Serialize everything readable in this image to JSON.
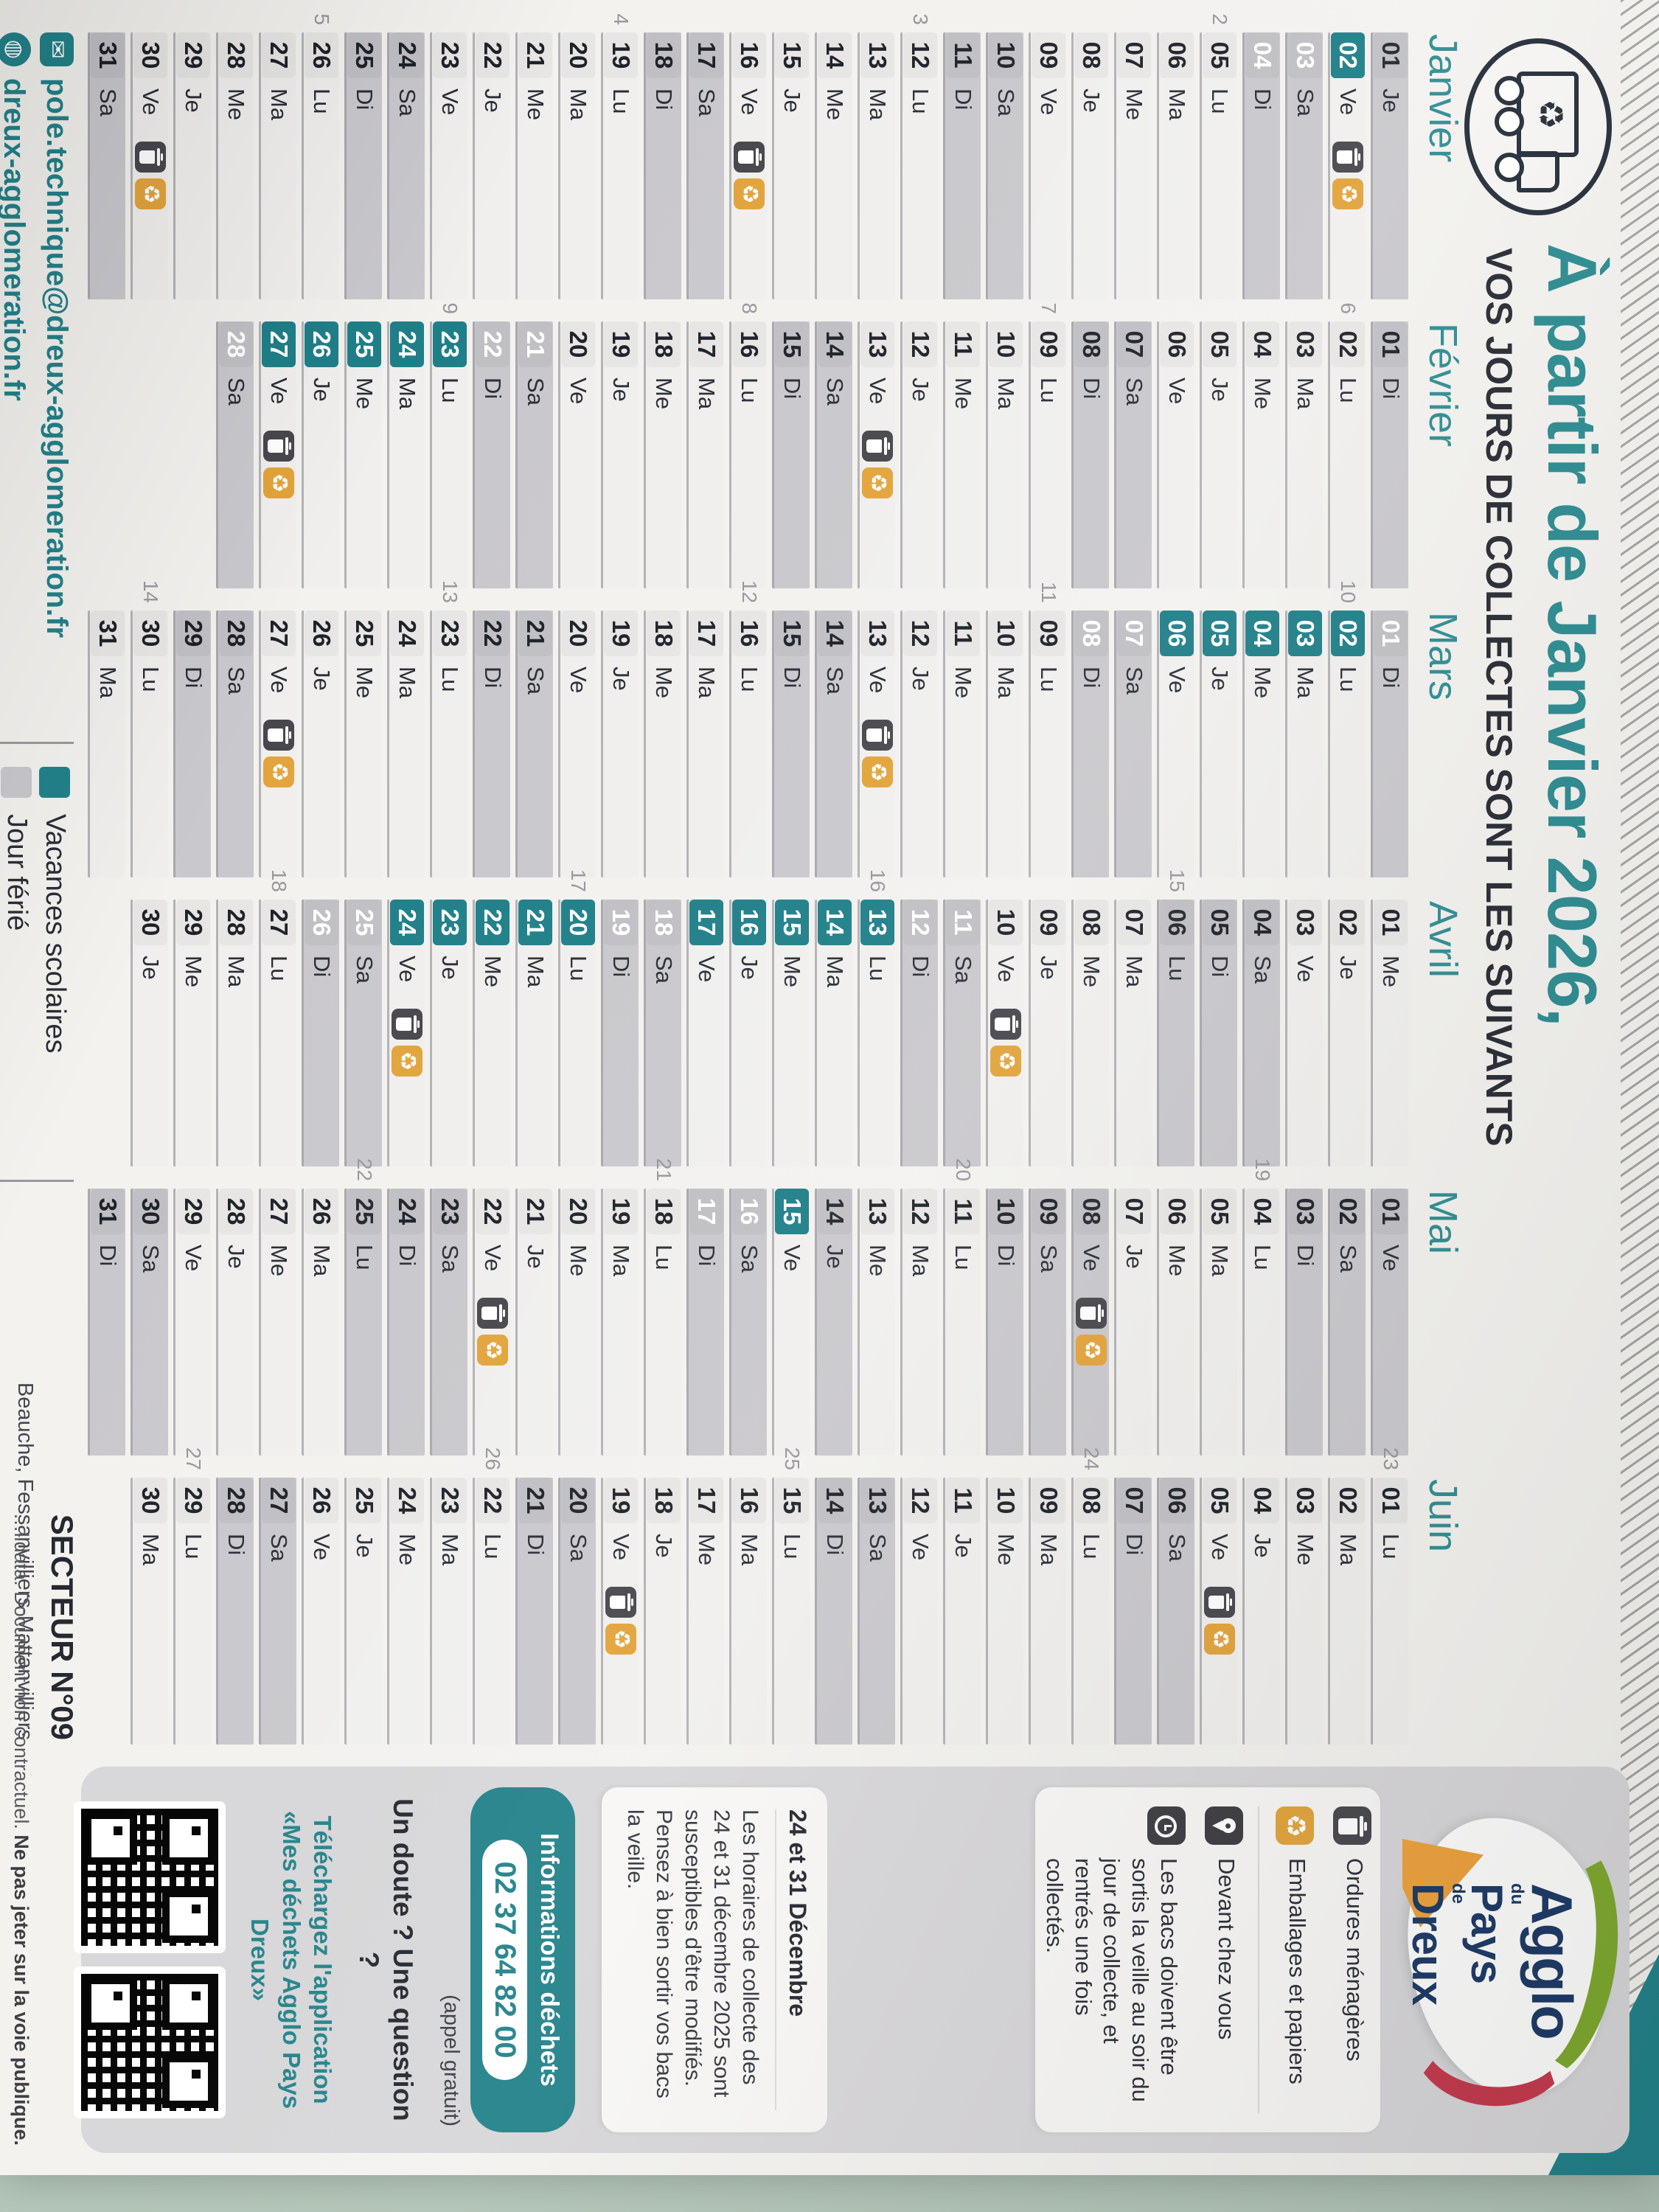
{
  "page": {
    "surface_color": "#b3c6b8",
    "paper_color": "#f3f2ef"
  },
  "header": {
    "title": "À partir de Janvier 2026,",
    "subtitle": "VOS JOURS DE COLLECTES SONT LES SUIVANTS",
    "truck_icon": "recycling-truck-icon",
    "truck_glyph": "♻"
  },
  "colors": {
    "teal": "#23828a",
    "vacances_box": "#1f7f88",
    "ferie_box": "#b1b0b6",
    "weekend_strip": "#c9c8cc",
    "weekday_strip": "#f0efed",
    "trash_icon_bg": "#47474d",
    "recycle_icon_bg": "#e2a43b"
  },
  "calendar": {
    "day_format_note": "day entries are [date, weekday, week_number, marks] with marks w=weekend, f=jour férié, v=vacances scolaires, c=jour de collecte",
    "months": [
      {
        "name": "Janvier",
        "days": [
          [
            "01",
            "Je",
            0,
            "f"
          ],
          [
            "02",
            "Ve",
            0,
            "vc"
          ],
          [
            "03",
            "Sa",
            0,
            "wv"
          ],
          [
            "04",
            "Di",
            0,
            "wv"
          ],
          [
            "05",
            "Lu",
            2,
            ""
          ],
          [
            "06",
            "Ma",
            0,
            ""
          ],
          [
            "07",
            "Me",
            0,
            ""
          ],
          [
            "08",
            "Je",
            0,
            ""
          ],
          [
            "09",
            "Ve",
            0,
            ""
          ],
          [
            "10",
            "Sa",
            0,
            "w"
          ],
          [
            "11",
            "Di",
            0,
            "w"
          ],
          [
            "12",
            "Lu",
            3,
            ""
          ],
          [
            "13",
            "Ma",
            0,
            ""
          ],
          [
            "14",
            "Me",
            0,
            ""
          ],
          [
            "15",
            "Je",
            0,
            ""
          ],
          [
            "16",
            "Ve",
            0,
            "c"
          ],
          [
            "17",
            "Sa",
            0,
            "w"
          ],
          [
            "18",
            "Di",
            0,
            "w"
          ],
          [
            "19",
            "Lu",
            4,
            ""
          ],
          [
            "20",
            "Ma",
            0,
            ""
          ],
          [
            "21",
            "Me",
            0,
            ""
          ],
          [
            "22",
            "Je",
            0,
            ""
          ],
          [
            "23",
            "Ve",
            0,
            ""
          ],
          [
            "24",
            "Sa",
            0,
            "w"
          ],
          [
            "25",
            "Di",
            0,
            "w"
          ],
          [
            "26",
            "Lu",
            5,
            ""
          ],
          [
            "27",
            "Ma",
            0,
            ""
          ],
          [
            "28",
            "Me",
            0,
            ""
          ],
          [
            "29",
            "Je",
            0,
            ""
          ],
          [
            "30",
            "Ve",
            0,
            "c"
          ],
          [
            "31",
            "Sa",
            0,
            "w"
          ]
        ]
      },
      {
        "name": "Février",
        "days": [
          [
            "01",
            "Di",
            0,
            "w"
          ],
          [
            "02",
            "Lu",
            6,
            ""
          ],
          [
            "03",
            "Ma",
            0,
            ""
          ],
          [
            "04",
            "Me",
            0,
            ""
          ],
          [
            "05",
            "Je",
            0,
            ""
          ],
          [
            "06",
            "Ve",
            0,
            ""
          ],
          [
            "07",
            "Sa",
            0,
            "w"
          ],
          [
            "08",
            "Di",
            0,
            "w"
          ],
          [
            "09",
            "Lu",
            7,
            ""
          ],
          [
            "10",
            "Ma",
            0,
            ""
          ],
          [
            "11",
            "Me",
            0,
            ""
          ],
          [
            "12",
            "Je",
            0,
            ""
          ],
          [
            "13",
            "Ve",
            0,
            "c"
          ],
          [
            "14",
            "Sa",
            0,
            "w"
          ],
          [
            "15",
            "Di",
            0,
            "w"
          ],
          [
            "16",
            "Lu",
            8,
            ""
          ],
          [
            "17",
            "Ma",
            0,
            ""
          ],
          [
            "18",
            "Me",
            0,
            ""
          ],
          [
            "19",
            "Je",
            0,
            ""
          ],
          [
            "20",
            "Ve",
            0,
            ""
          ],
          [
            "21",
            "Sa",
            0,
            "wv"
          ],
          [
            "22",
            "Di",
            0,
            "wv"
          ],
          [
            "23",
            "Lu",
            9,
            "v"
          ],
          [
            "24",
            "Ma",
            0,
            "v"
          ],
          [
            "25",
            "Me",
            0,
            "v"
          ],
          [
            "26",
            "Je",
            0,
            "v"
          ],
          [
            "27",
            "Ve",
            0,
            "vc"
          ],
          [
            "28",
            "Sa",
            0,
            "wv"
          ]
        ]
      },
      {
        "name": "Mars",
        "days": [
          [
            "01",
            "Di",
            0,
            "wv"
          ],
          [
            "02",
            "Lu",
            10,
            "v"
          ],
          [
            "03",
            "Ma",
            0,
            "v"
          ],
          [
            "04",
            "Me",
            0,
            "v"
          ],
          [
            "05",
            "Je",
            0,
            "v"
          ],
          [
            "06",
            "Ve",
            0,
            "v"
          ],
          [
            "07",
            "Sa",
            0,
            "wv"
          ],
          [
            "08",
            "Di",
            0,
            "wv"
          ],
          [
            "09",
            "Lu",
            11,
            ""
          ],
          [
            "10",
            "Ma",
            0,
            ""
          ],
          [
            "11",
            "Me",
            0,
            ""
          ],
          [
            "12",
            "Je",
            0,
            ""
          ],
          [
            "13",
            "Ve",
            0,
            "c"
          ],
          [
            "14",
            "Sa",
            0,
            "w"
          ],
          [
            "15",
            "Di",
            0,
            "w"
          ],
          [
            "16",
            "Lu",
            12,
            ""
          ],
          [
            "17",
            "Ma",
            0,
            ""
          ],
          [
            "18",
            "Me",
            0,
            ""
          ],
          [
            "19",
            "Je",
            0,
            ""
          ],
          [
            "20",
            "Ve",
            0,
            ""
          ],
          [
            "21",
            "Sa",
            0,
            "w"
          ],
          [
            "22",
            "Di",
            0,
            "w"
          ],
          [
            "23",
            "Lu",
            13,
            ""
          ],
          [
            "24",
            "Ma",
            0,
            ""
          ],
          [
            "25",
            "Me",
            0,
            ""
          ],
          [
            "26",
            "Je",
            0,
            ""
          ],
          [
            "27",
            "Ve",
            0,
            "c"
          ],
          [
            "28",
            "Sa",
            0,
            "w"
          ],
          [
            "29",
            "Di",
            0,
            "w"
          ],
          [
            "30",
            "Lu",
            14,
            ""
          ],
          [
            "31",
            "Ma",
            0,
            ""
          ]
        ]
      },
      {
        "name": "Avril",
        "days": [
          [
            "01",
            "Me",
            0,
            ""
          ],
          [
            "02",
            "Je",
            0,
            ""
          ],
          [
            "03",
            "Ve",
            0,
            ""
          ],
          [
            "04",
            "Sa",
            0,
            "w"
          ],
          [
            "05",
            "Di",
            0,
            "w"
          ],
          [
            "06",
            "Lu",
            15,
            "f"
          ],
          [
            "07",
            "Ma",
            0,
            ""
          ],
          [
            "08",
            "Me",
            0,
            ""
          ],
          [
            "09",
            "Je",
            0,
            ""
          ],
          [
            "10",
            "Ve",
            0,
            "c"
          ],
          [
            "11",
            "Sa",
            0,
            "wv"
          ],
          [
            "12",
            "Di",
            0,
            "wv"
          ],
          [
            "13",
            "Lu",
            16,
            "v"
          ],
          [
            "14",
            "Ma",
            0,
            "v"
          ],
          [
            "15",
            "Me",
            0,
            "v"
          ],
          [
            "16",
            "Je",
            0,
            "v"
          ],
          [
            "17",
            "Ve",
            0,
            "v"
          ],
          [
            "18",
            "Sa",
            0,
            "wv"
          ],
          [
            "19",
            "Di",
            0,
            "wv"
          ],
          [
            "20",
            "Lu",
            17,
            "v"
          ],
          [
            "21",
            "Ma",
            0,
            "v"
          ],
          [
            "22",
            "Me",
            0,
            "v"
          ],
          [
            "23",
            "Je",
            0,
            "v"
          ],
          [
            "24",
            "Ve",
            0,
            "vc"
          ],
          [
            "25",
            "Sa",
            0,
            "wv"
          ],
          [
            "26",
            "Di",
            0,
            "wv"
          ],
          [
            "27",
            "Lu",
            18,
            ""
          ],
          [
            "28",
            "Ma",
            0,
            ""
          ],
          [
            "29",
            "Me",
            0,
            ""
          ],
          [
            "30",
            "Je",
            0,
            ""
          ]
        ]
      },
      {
        "name": "Mai",
        "days": [
          [
            "01",
            "Ve",
            0,
            "f"
          ],
          [
            "02",
            "Sa",
            0,
            "w"
          ],
          [
            "03",
            "Di",
            0,
            "w"
          ],
          [
            "04",
            "Lu",
            19,
            ""
          ],
          [
            "05",
            "Ma",
            0,
            ""
          ],
          [
            "06",
            "Me",
            0,
            ""
          ],
          [
            "07",
            "Je",
            0,
            ""
          ],
          [
            "08",
            "Ve",
            0,
            "fc"
          ],
          [
            "09",
            "Sa",
            0,
            "w"
          ],
          [
            "10",
            "Di",
            0,
            "w"
          ],
          [
            "11",
            "Lu",
            20,
            ""
          ],
          [
            "12",
            "Ma",
            0,
            ""
          ],
          [
            "13",
            "Me",
            0,
            ""
          ],
          [
            "14",
            "Je",
            0,
            "f"
          ],
          [
            "15",
            "Ve",
            0,
            "v"
          ],
          [
            "16",
            "Sa",
            0,
            "wv"
          ],
          [
            "17",
            "Di",
            0,
            "wv"
          ],
          [
            "18",
            "Lu",
            21,
            ""
          ],
          [
            "19",
            "Ma",
            0,
            ""
          ],
          [
            "20",
            "Me",
            0,
            ""
          ],
          [
            "21",
            "Je",
            0,
            ""
          ],
          [
            "22",
            "Ve",
            0,
            "c"
          ],
          [
            "23",
            "Sa",
            0,
            "w"
          ],
          [
            "24",
            "Di",
            0,
            "w"
          ],
          [
            "25",
            "Lu",
            22,
            "f"
          ],
          [
            "26",
            "Ma",
            0,
            ""
          ],
          [
            "27",
            "Me",
            0,
            ""
          ],
          [
            "28",
            "Je",
            0,
            ""
          ],
          [
            "29",
            "Ve",
            0,
            ""
          ],
          [
            "30",
            "Sa",
            0,
            "w"
          ],
          [
            "31",
            "Di",
            0,
            "w"
          ]
        ]
      },
      {
        "name": "Juin",
        "days": [
          [
            "01",
            "Lu",
            23,
            ""
          ],
          [
            "02",
            "Ma",
            0,
            ""
          ],
          [
            "03",
            "Me",
            0,
            ""
          ],
          [
            "04",
            "Je",
            0,
            ""
          ],
          [
            "05",
            "Ve",
            0,
            "c"
          ],
          [
            "06",
            "Sa",
            0,
            "w"
          ],
          [
            "07",
            "Di",
            0,
            "w"
          ],
          [
            "08",
            "Lu",
            24,
            ""
          ],
          [
            "09",
            "Ma",
            0,
            ""
          ],
          [
            "10",
            "Me",
            0,
            ""
          ],
          [
            "11",
            "Je",
            0,
            ""
          ],
          [
            "12",
            "Ve",
            0,
            ""
          ],
          [
            "13",
            "Sa",
            0,
            "w"
          ],
          [
            "14",
            "Di",
            0,
            "w"
          ],
          [
            "15",
            "Lu",
            25,
            ""
          ],
          [
            "16",
            "Ma",
            0,
            ""
          ],
          [
            "17",
            "Me",
            0,
            ""
          ],
          [
            "18",
            "Je",
            0,
            ""
          ],
          [
            "19",
            "Ve",
            0,
            "c"
          ],
          [
            "20",
            "Sa",
            0,
            "w"
          ],
          [
            "21",
            "Di",
            0,
            "w"
          ],
          [
            "22",
            "Lu",
            26,
            ""
          ],
          [
            "23",
            "Ma",
            0,
            ""
          ],
          [
            "24",
            "Me",
            0,
            ""
          ],
          [
            "25",
            "Je",
            0,
            ""
          ],
          [
            "26",
            "Ve",
            0,
            ""
          ],
          [
            "27",
            "Sa",
            0,
            "w"
          ],
          [
            "28",
            "Di",
            0,
            "w"
          ],
          [
            "29",
            "Lu",
            27,
            ""
          ],
          [
            "30",
            "Ma",
            0,
            ""
          ]
        ]
      }
    ]
  },
  "logo": {
    "word1": "Agglo",
    "small1": "du",
    "word2": "Pays",
    "small2": "de",
    "word3": "Dreux"
  },
  "legend_box": {
    "collect_types": [
      {
        "icon": "trash-icon",
        "label": "Ordures ménagères"
      },
      {
        "icon": "recycle-icon",
        "label": "Emballages et papiers"
      }
    ],
    "instructions": [
      {
        "icon": "location-pin-icon",
        "label": "Devant chez vous"
      },
      {
        "icon": "clock-icon",
        "label": "Les bacs doivent être sortis la veille au soir du jour de collecte, et rentrés une fois collectés."
      }
    ]
  },
  "december_note": {
    "title": "24 et 31 Décembre",
    "body": "Les horaires de collecte des 24 et 31 décembre 2025 sont susceptibles d'être modifiés. Pensez à bien sortir vos bacs la veille."
  },
  "info_panel": {
    "pill_label": "Informations déchets",
    "phone": "02 37 64 82 00",
    "phone_note": "(appel gratuit)",
    "question": "Un doute ? Une question ?",
    "app_prompt": "Téléchargez l'application «Mes déchets Agglo Pays Dreux»",
    "qr_codes": 2
  },
  "footer": {
    "email": "pole.technique@dreux-agglomeration.fr",
    "website": "dreux-agglomeration.fr",
    "email_icon_glyph": "✉",
    "legend": [
      {
        "color_key": "teal",
        "label": "Vacances scolaires"
      },
      {
        "color_key": "gray",
        "label": "Jour férié"
      }
    ],
    "sector": "SECTEUR N°09",
    "communes": "Beauche, Fessanvilliers-Mattanvilliers",
    "fine_print": "…lidata. Document non contractuel. ",
    "fine_print_bold": "Ne pas jeter sur la voie publique."
  }
}
